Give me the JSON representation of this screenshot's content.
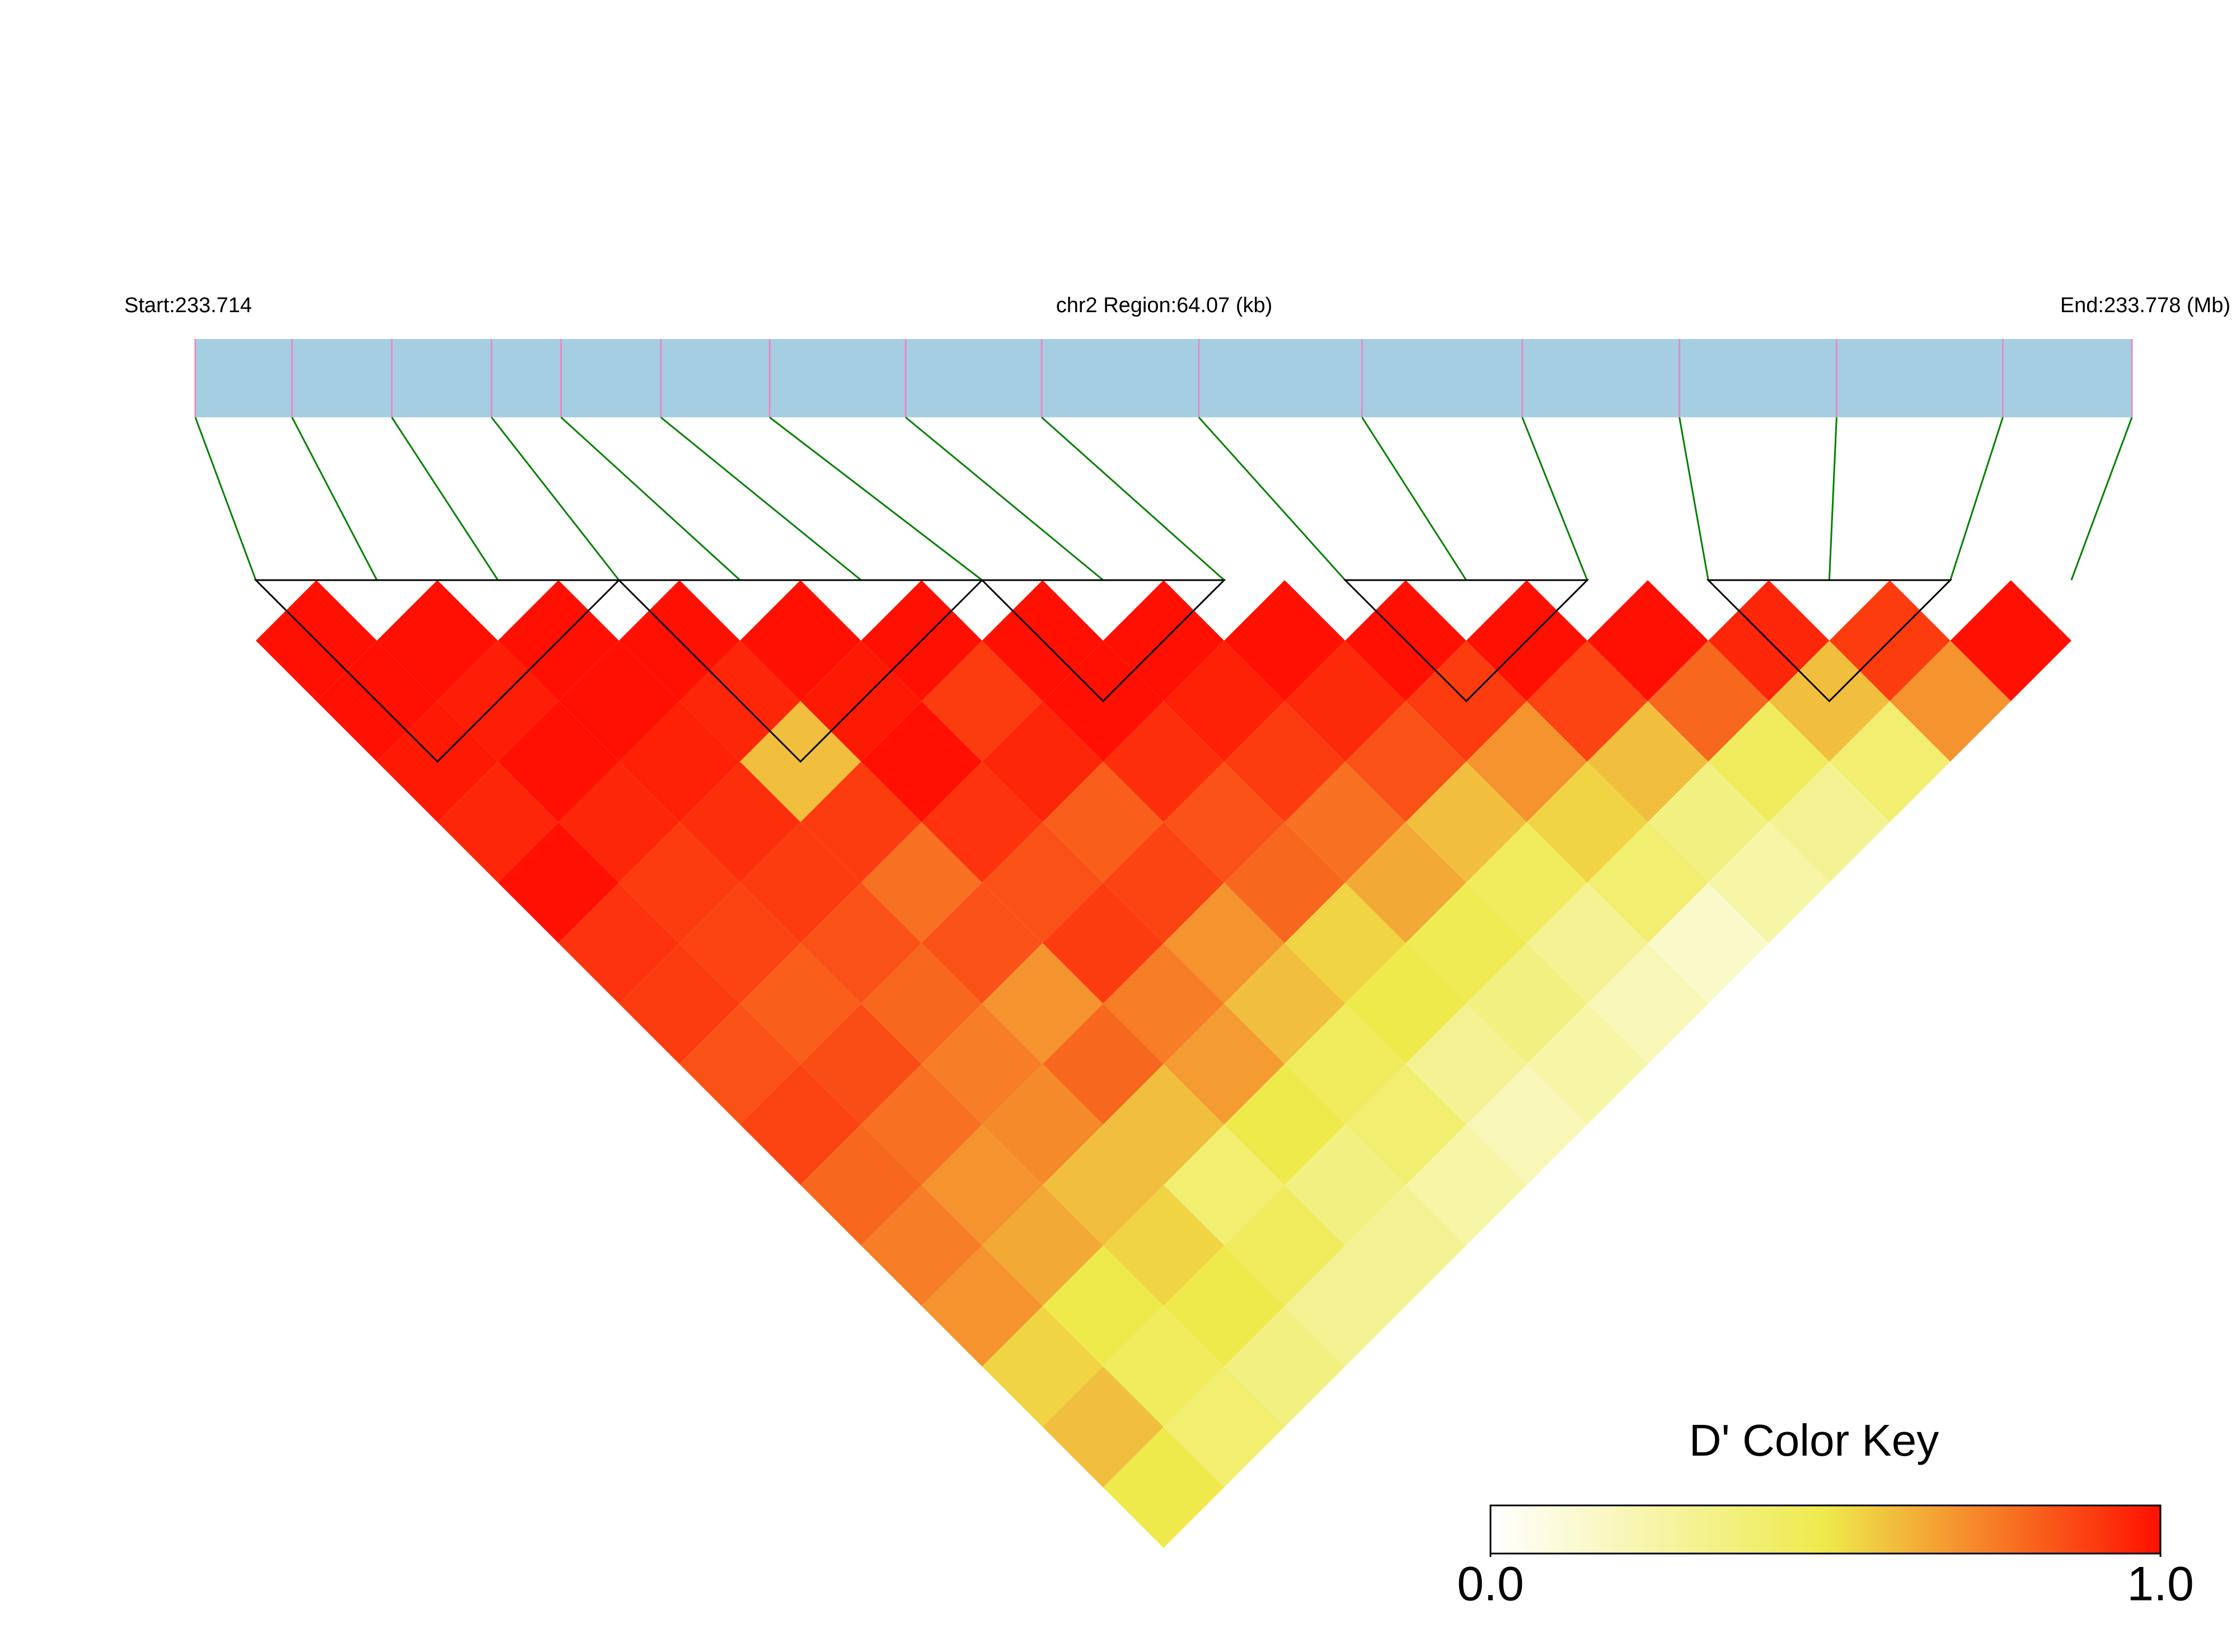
{
  "chart_data": {
    "type": "ld_heatmap",
    "start_label": "Start:233.714",
    "region_label": "chr2 Region:64.07 (kb)",
    "end_label": "End:233.778 (Mb)",
    "xlim": [
      0,
      64.07
    ],
    "snp_positions": [
      0,
      3.2,
      6.5,
      9.8,
      12.1,
      15.4,
      19.0,
      23.5,
      28.0,
      33.2,
      38.6,
      43.9,
      49.1,
      54.3,
      59.8,
      64.07
    ],
    "dprime": [
      [
        1,
        1,
        0.98,
        0.95,
        1,
        0.92,
        0.9,
        0.85,
        0.88,
        0.8,
        0.75,
        0.7,
        0.55,
        0.6,
        0.5
      ],
      [
        1,
        0.97,
        1,
        0.95,
        0.9,
        0.88,
        0.82,
        0.86,
        0.78,
        0.7,
        0.65,
        0.5,
        0.45,
        0.4
      ],
      [
        1,
        1,
        0.96,
        0.93,
        0.9,
        0.85,
        0.8,
        0.75,
        0.72,
        0.6,
        0.55,
        0.5,
        0.35
      ],
      [
        1,
        0.95,
        0.6,
        0.9,
        0.78,
        0.85,
        0.7,
        0.8,
        0.6,
        0.4,
        0.45,
        0.3
      ],
      [
        1,
        0.98,
        1,
        0.92,
        0.85,
        0.9,
        0.75,
        0.68,
        0.5,
        0.35,
        0.3
      ],
      [
        1,
        0.9,
        0.95,
        0.82,
        0.88,
        0.7,
        0.6,
        0.45,
        0.4,
        0.25
      ],
      [
        1,
        1,
        0.93,
        0.85,
        0.8,
        0.55,
        0.5,
        0.3,
        0.2
      ],
      [
        1,
        0.96,
        0.9,
        0.78,
        0.65,
        0.48,
        0.35,
        0.25
      ],
      [
        1,
        0.94,
        0.85,
        0.6,
        0.45,
        0.3,
        0.2
      ],
      [
        1,
        0.9,
        0.7,
        0.55,
        0.4,
        0.15
      ],
      [
        1,
        0.88,
        0.6,
        0.35,
        0.25
      ],
      [
        1,
        0.8,
        0.45,
        0.3
      ],
      [
        0.95,
        0.6,
        0.4
      ],
      [
        0.9,
        0.7
      ],
      [
        1
      ]
    ],
    "blocks": [
      [
        0,
        3
      ],
      [
        3,
        6
      ],
      [
        6,
        8
      ],
      [
        9,
        11
      ],
      [
        12,
        14
      ]
    ],
    "bar_color": "#a6cee3",
    "snp_color": "#e78ac3",
    "link_color": "#008000",
    "color_key": {
      "title": "D' Color Key",
      "colors": [
        "#ffffff",
        "#eeea4c",
        "#ff1000"
      ],
      "lim": [
        0,
        1
      ],
      "ticks": [
        {
          "value": 0,
          "label": "0.0"
        },
        {
          "value": 1,
          "label": "1.0"
        }
      ]
    }
  }
}
